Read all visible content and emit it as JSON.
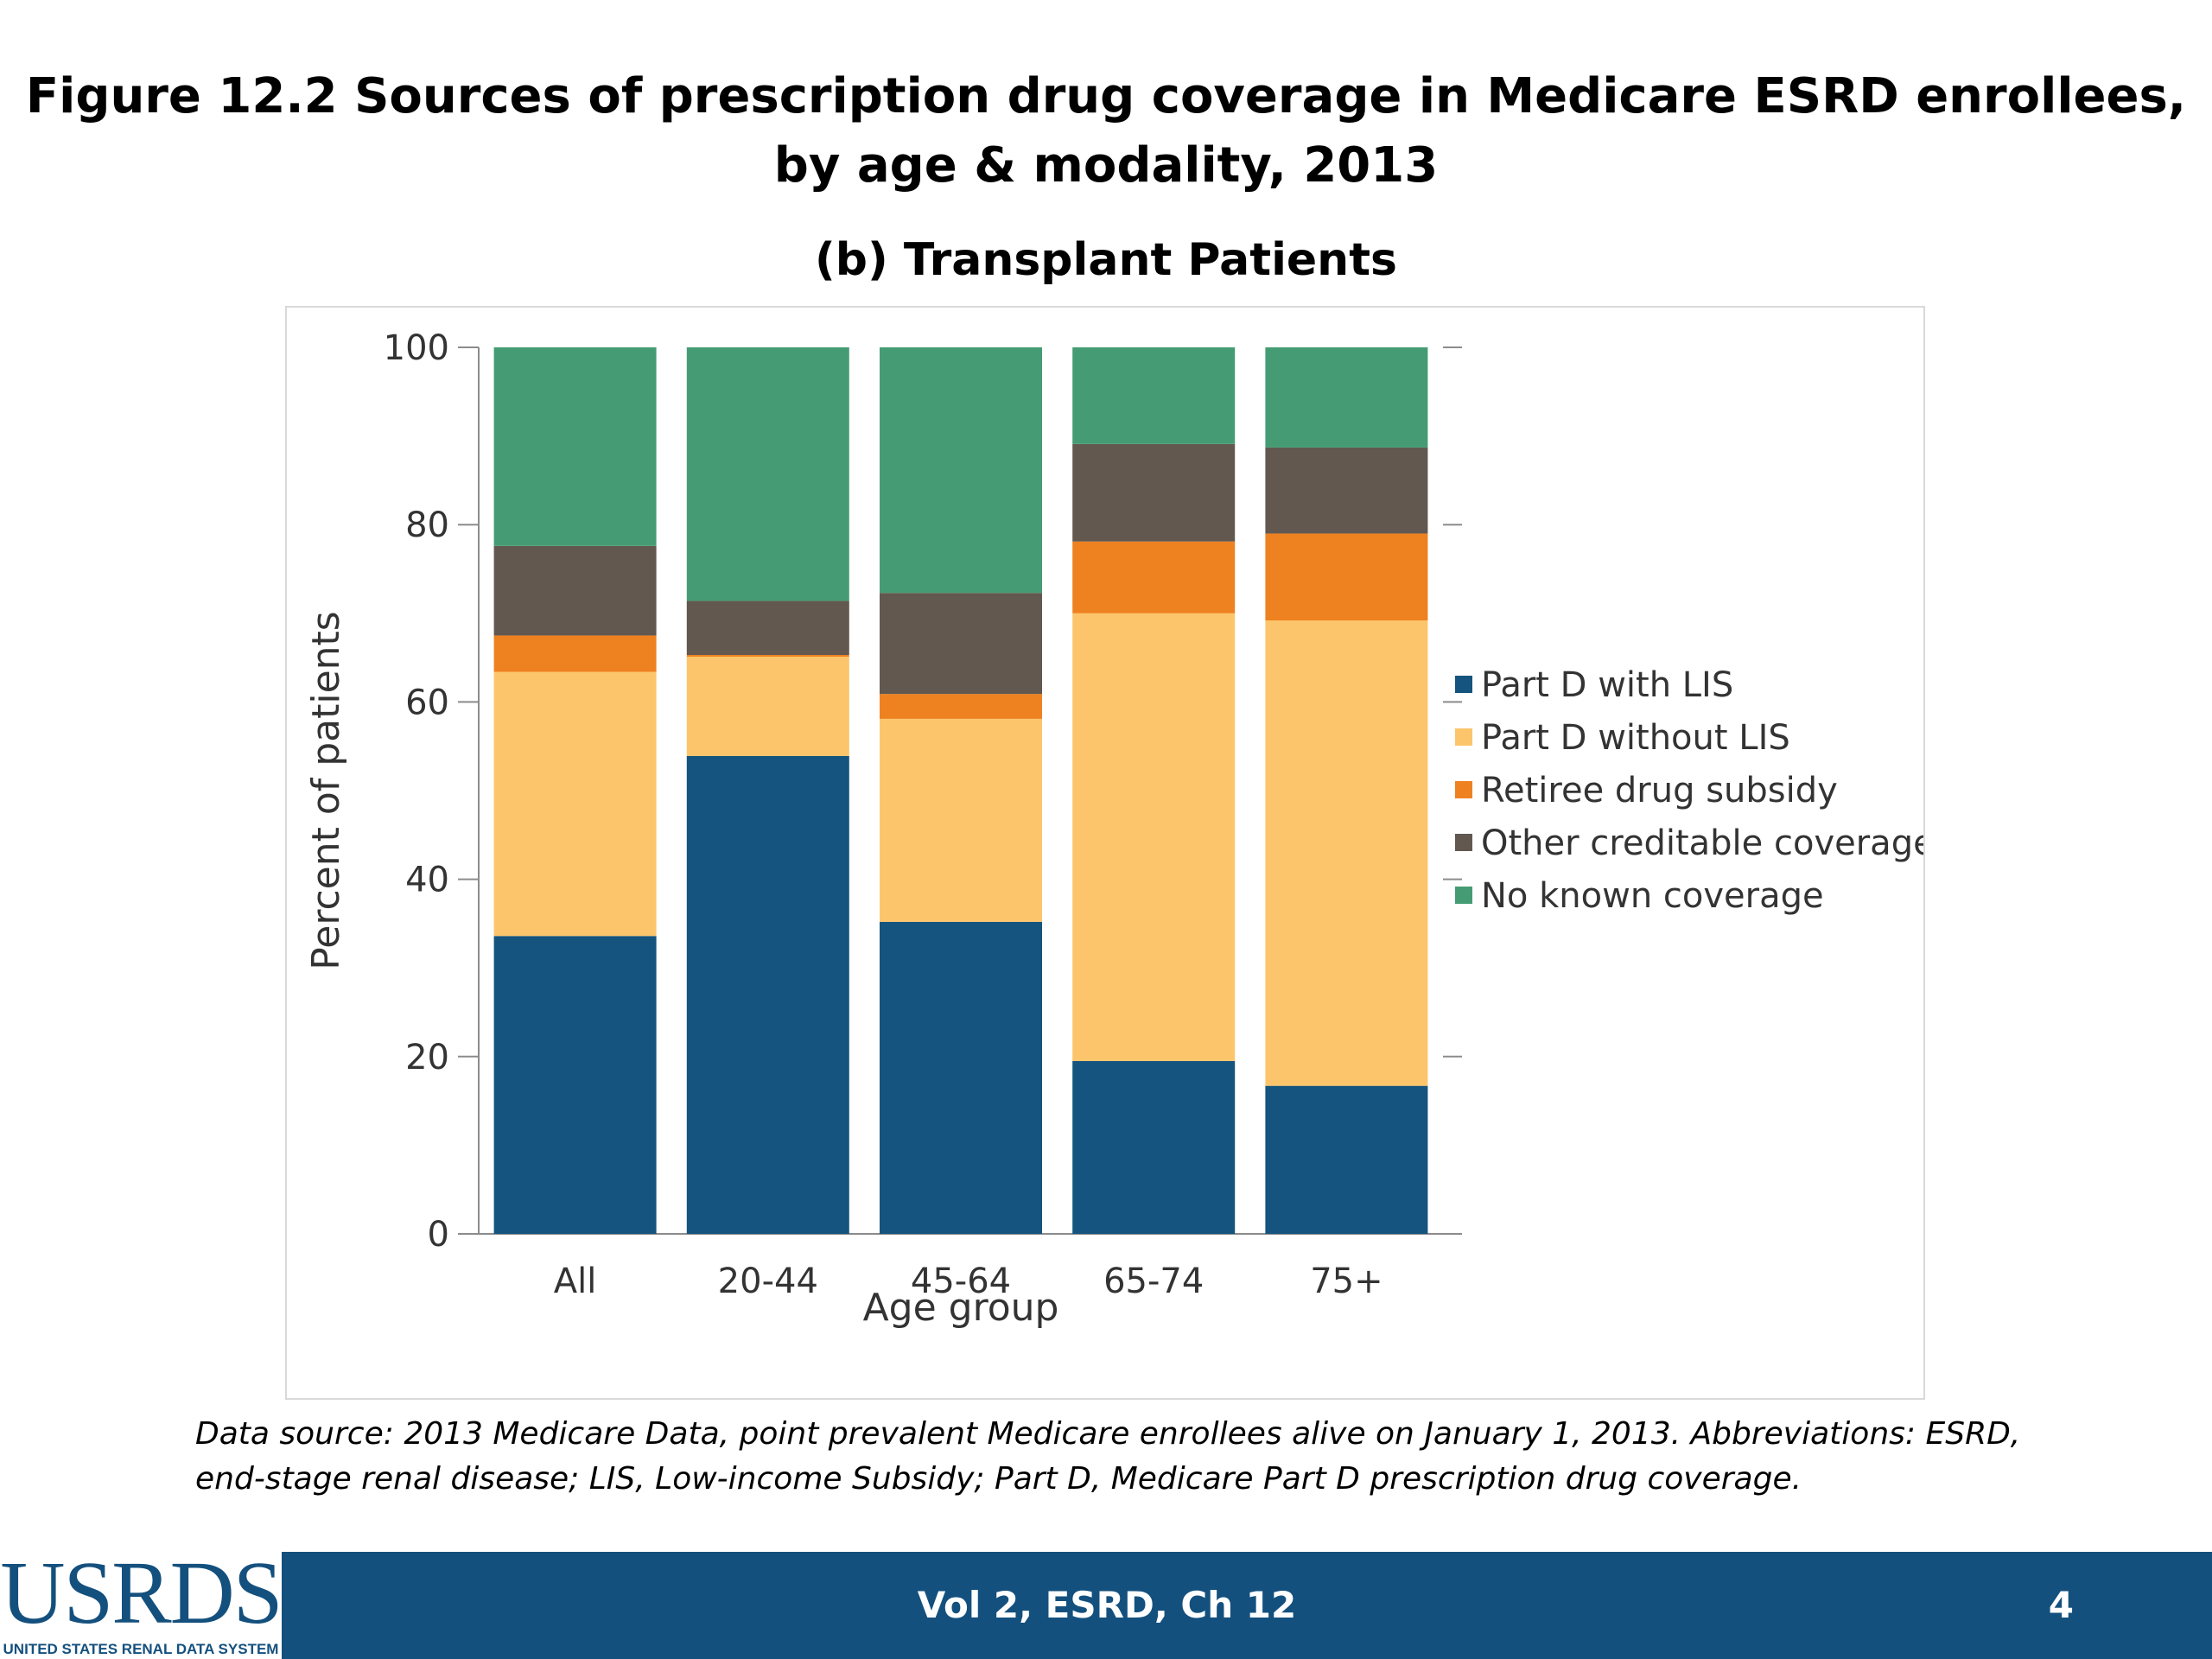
{
  "title": {
    "line1": "Figure 12.2 Sources of prescription drug coverage in Medicare ESRD enrollees,",
    "line2": "by age & modality, 2013"
  },
  "subtitle": "(b) Transplant Patients",
  "chart_data": {
    "type": "bar",
    "stacked": true,
    "categories": [
      "All",
      "20-44",
      "45-64",
      "65-74",
      "75+"
    ],
    "series": [
      {
        "name": "Part D with LIS",
        "color": "#14547e",
        "values": [
          33.6,
          53.9,
          35.2,
          19.5,
          16.7
        ]
      },
      {
        "name": "Part D without LIS",
        "color": "#fdc56b",
        "values": [
          29.8,
          11.2,
          22.9,
          50.5,
          52.5
        ]
      },
      {
        "name": "Retiree drug subsidy",
        "color": "#ee8120",
        "values": [
          4.1,
          0.2,
          2.8,
          8.1,
          9.8
        ]
      },
      {
        "name": "Other creditable coverage",
        "color": "#625850",
        "values": [
          10.1,
          6.1,
          11.4,
          11.0,
          9.7
        ]
      },
      {
        "name": "No known coverage",
        "color": "#459c74",
        "values": [
          22.4,
          28.6,
          27.7,
          10.9,
          11.3
        ]
      }
    ],
    "xlabel": "Age group",
    "ylabel": "Percent of patients",
    "ylim": [
      0,
      100
    ],
    "yticks": [
      0,
      20,
      40,
      60,
      80,
      100
    ],
    "grid": false,
    "legend_position": "right"
  },
  "footnote": "Data source: 2013 Medicare Data, point prevalent Medicare enrollees alive on January 1, 2013. Abbreviations: ESRD, end-stage renal disease; LIS, Low-income Subsidy; Part D, Medicare Part D prescription drug coverage.",
  "footer": {
    "label": "Vol 2, ESRD, Ch 12",
    "page_number": "4",
    "logo_text": "USRDS",
    "logo_tagline": "UNITED STATES RENAL DATA SYSTEM"
  }
}
